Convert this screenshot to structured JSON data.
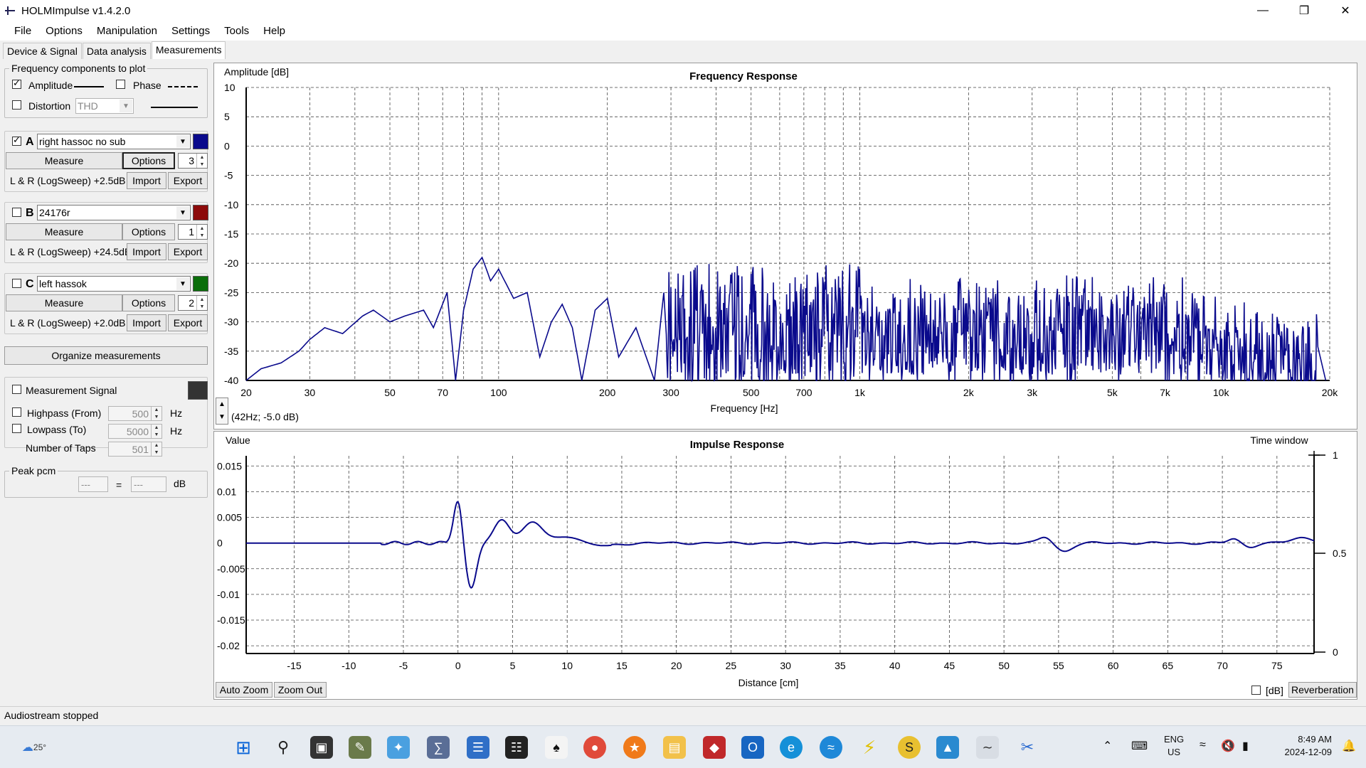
{
  "window": {
    "title": "HOLMImpulse  v1.4.2.0"
  },
  "menu": [
    "File",
    "Options",
    "Manipulation",
    "Settings",
    "Tools",
    "Help"
  ],
  "tabs": [
    "Device & Signal",
    "Data analysis",
    "Measurements"
  ],
  "freq_components": {
    "legend": "Frequency components to plot",
    "amplitude": "Amplitude",
    "phase": "Phase",
    "distortion": "Distortion",
    "distortion_type": "THD"
  },
  "measurements": [
    {
      "letter": "A",
      "name": "right hassoc no sub",
      "color": "#0a0a8c",
      "checked": true,
      "measure": "Measure",
      "options": "Options",
      "count": "3",
      "info": "L & R (LogSweep) +2.5dB",
      "import": "Import",
      "export": "Export"
    },
    {
      "letter": "B",
      "name": "24176r",
      "color": "#8c0a0a",
      "checked": false,
      "measure": "Measure",
      "options": "Options",
      "count": "1",
      "info": "L & R (LogSweep) +24.5dB",
      "import": "Import",
      "export": "Export"
    },
    {
      "letter": "C",
      "name": "left hassok",
      "color": "#0a6e0a",
      "checked": false,
      "measure": "Measure",
      "options": "Options",
      "count": "2",
      "info": "L & R (LogSweep) +2.0dB",
      "import": "Import",
      "export": "Export"
    }
  ],
  "organize": "Organize measurements",
  "signal": {
    "label": "Measurement Signal",
    "color": "#333333",
    "highpass": "Highpass (From)",
    "highpass_value": "500",
    "lowpass": "Lowpass (To)",
    "lowpass_value": "5000",
    "taps": "Number of Taps",
    "taps_value": "501",
    "hz": "Hz"
  },
  "peak": {
    "legend": "Peak pcm",
    "value1": "---",
    "eq": "=",
    "value2": "---",
    "unit": "dB"
  },
  "freq_plot": {
    "title": "Frequency Response",
    "ylabel": "Amplitude [dB]",
    "xlabel": "Frequency [Hz]",
    "cursor": "(42Hz; -5.0 dB)",
    "y_ticks": [
      "10",
      "5",
      "0",
      "-5",
      "-10",
      "-15",
      "-20",
      "-25",
      "-30",
      "-35",
      "-40"
    ],
    "x_ticks": [
      "20",
      "30",
      "50",
      "70",
      "100",
      "200",
      "300",
      "500",
      "700",
      "1k",
      "2k",
      "3k",
      "5k",
      "7k",
      "10k",
      "20k"
    ]
  },
  "impulse_plot": {
    "title": "Impulse Response",
    "ylabel": "Value",
    "xlabel": "Distance [cm]",
    "time_window": "Time window",
    "y_ticks": [
      "0.015",
      "0.01",
      "0.005",
      "0",
      "-0.005",
      "-0.01",
      "-0.015",
      "-0.02"
    ],
    "x_ticks": [
      "-15",
      "-10",
      "-5",
      "0",
      "5",
      "10",
      "15",
      "20",
      "25",
      "30",
      "35",
      "40",
      "45",
      "50",
      "55",
      "60",
      "65",
      "70",
      "75"
    ],
    "tw_ticks": [
      "1",
      "0.5",
      "0"
    ],
    "auto_zoom": "Auto Zoom",
    "zoom_out": "Zoom Out",
    "db": "[dB]",
    "reverberation": "Reverberation"
  },
  "status": "Audiostream stopped",
  "taskbar": {
    "weather": "25°",
    "lang": "ENG",
    "region": "US",
    "time": "8:49 AM",
    "date": "2024-12-09"
  }
}
